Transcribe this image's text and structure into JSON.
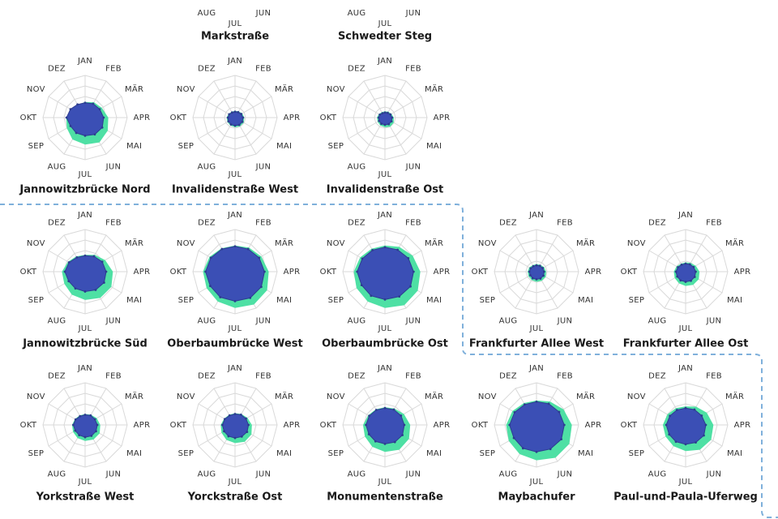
{
  "colors": {
    "outer_fill": "#4ee0a4",
    "inner_fill": "#3b4fb5",
    "inner_stroke": "#2d3c8f",
    "grid": "#d9d9d9",
    "group_border": "#7fb0db"
  },
  "months": [
    "JAN",
    "FEB",
    "MÄR",
    "APR",
    "MAI",
    "JUN",
    "JUL",
    "AUG",
    "SEP",
    "OKT",
    "NOV",
    "DEZ"
  ],
  "partial_row_top": {
    "visible_labels": [
      "JUL",
      "AUG",
      "JUN"
    ],
    "titles": [
      "Markstraße",
      "Schwedter Steg"
    ]
  },
  "chart_data": [
    {
      "type": "radar",
      "title": "Jannowitzbrücke Nord",
      "series": [
        {
          "values": [
            0.37,
            0.42,
            0.46,
            0.55,
            0.62,
            0.68,
            0.64,
            0.6,
            0.5,
            0.45,
            0.38,
            0.35
          ]
        },
        {
          "values": [
            0.35,
            0.38,
            0.4,
            0.44,
            0.47,
            0.46,
            0.43,
            0.42,
            0.4,
            0.44,
            0.4,
            0.36
          ]
        }
      ]
    },
    {
      "type": "radar",
      "title": "Invalidenstraße West",
      "series": [
        {
          "values": [
            0.16,
            0.17,
            0.2,
            0.22,
            0.24,
            0.24,
            0.23,
            0.22,
            0.21,
            0.2,
            0.18,
            0.16
          ]
        },
        {
          "values": [
            0.14,
            0.15,
            0.17,
            0.19,
            0.2,
            0.2,
            0.19,
            0.19,
            0.18,
            0.17,
            0.16,
            0.14
          ]
        }
      ]
    },
    {
      "type": "radar",
      "title": "Invalidenstraße Ost",
      "series": [
        {
          "values": [
            0.15,
            0.16,
            0.18,
            0.21,
            0.24,
            0.25,
            0.23,
            0.22,
            0.2,
            0.19,
            0.17,
            0.15
          ]
        },
        {
          "values": [
            0.12,
            0.13,
            0.15,
            0.17,
            0.18,
            0.18,
            0.17,
            0.17,
            0.16,
            0.15,
            0.14,
            0.12
          ]
        }
      ]
    },
    {
      "type": "radar",
      "title": "Jannowitzbrücke Süd",
      "series": [
        {
          "values": [
            0.4,
            0.46,
            0.55,
            0.66,
            0.72,
            0.72,
            0.67,
            0.63,
            0.57,
            0.55,
            0.47,
            0.42
          ]
        },
        {
          "values": [
            0.38,
            0.42,
            0.47,
            0.5,
            0.52,
            0.5,
            0.47,
            0.46,
            0.45,
            0.48,
            0.44,
            0.39
          ]
        }
      ]
    },
    {
      "type": "radar",
      "title": "Oberbaumbrücke West",
      "series": [
        {
          "values": [
            0.62,
            0.66,
            0.72,
            0.8,
            0.88,
            0.9,
            0.86,
            0.82,
            0.78,
            0.76,
            0.7,
            0.64
          ]
        },
        {
          "values": [
            0.6,
            0.62,
            0.66,
            0.7,
            0.72,
            0.72,
            0.7,
            0.7,
            0.68,
            0.7,
            0.66,
            0.62
          ]
        }
      ]
    },
    {
      "type": "radar",
      "title": "Oberbaumbrücke Ost",
      "series": [
        {
          "values": [
            0.62,
            0.68,
            0.76,
            0.84,
            0.9,
            0.92,
            0.86,
            0.82,
            0.78,
            0.74,
            0.68,
            0.63
          ]
        },
        {
          "values": [
            0.58,
            0.6,
            0.64,
            0.68,
            0.7,
            0.68,
            0.66,
            0.66,
            0.64,
            0.66,
            0.62,
            0.59
          ]
        }
      ]
    },
    {
      "type": "radar",
      "title": "Frankfurter Allee West",
      "series": [
        {
          "values": [
            0.18,
            0.19,
            0.21,
            0.23,
            0.25,
            0.25,
            0.24,
            0.23,
            0.22,
            0.21,
            0.2,
            0.18
          ]
        },
        {
          "values": [
            0.15,
            0.16,
            0.17,
            0.18,
            0.19,
            0.19,
            0.18,
            0.18,
            0.17,
            0.17,
            0.16,
            0.15
          ]
        }
      ]
    },
    {
      "type": "radar",
      "title": "Frankfurter Allee Ost",
      "series": [
        {
          "values": [
            0.22,
            0.24,
            0.28,
            0.33,
            0.36,
            0.36,
            0.34,
            0.32,
            0.3,
            0.28,
            0.25,
            0.22
          ]
        },
        {
          "values": [
            0.19,
            0.2,
            0.22,
            0.24,
            0.25,
            0.25,
            0.24,
            0.24,
            0.23,
            0.23,
            0.21,
            0.19
          ]
        }
      ]
    },
    {
      "type": "radar",
      "title": "Yorkstraße West",
      "series": [
        {
          "values": [
            0.26,
            0.28,
            0.32,
            0.36,
            0.4,
            0.4,
            0.38,
            0.36,
            0.33,
            0.31,
            0.28,
            0.26
          ]
        },
        {
          "values": [
            0.24,
            0.26,
            0.27,
            0.29,
            0.3,
            0.3,
            0.29,
            0.28,
            0.27,
            0.28,
            0.26,
            0.24
          ]
        }
      ]
    },
    {
      "type": "radar",
      "title": "Yorckstraße Ost",
      "series": [
        {
          "values": [
            0.28,
            0.3,
            0.34,
            0.4,
            0.45,
            0.46,
            0.43,
            0.41,
            0.37,
            0.34,
            0.3,
            0.28
          ]
        },
        {
          "values": [
            0.26,
            0.28,
            0.3,
            0.32,
            0.33,
            0.32,
            0.31,
            0.31,
            0.3,
            0.3,
            0.28,
            0.26
          ]
        }
      ]
    },
    {
      "type": "radar",
      "title": "Monumentenstraße",
      "series": [
        {
          "values": [
            0.42,
            0.45,
            0.52,
            0.6,
            0.66,
            0.68,
            0.64,
            0.6,
            0.55,
            0.52,
            0.46,
            0.43
          ]
        },
        {
          "values": [
            0.4,
            0.42,
            0.44,
            0.46,
            0.48,
            0.47,
            0.45,
            0.45,
            0.44,
            0.45,
            0.43,
            0.41
          ]
        }
      ]
    },
    {
      "type": "radar",
      "title": "Maybachufer",
      "series": [
        {
          "values": [
            0.58,
            0.64,
            0.74,
            0.84,
            0.9,
            0.9,
            0.84,
            0.8,
            0.76,
            0.72,
            0.66,
            0.6
          ]
        },
        {
          "values": [
            0.55,
            0.58,
            0.62,
            0.66,
            0.68,
            0.66,
            0.64,
            0.64,
            0.62,
            0.64,
            0.6,
            0.56
          ]
        }
      ]
    },
    {
      "type": "radar",
      "title": "Paul-und-Paula-Uferweg",
      "series": [
        {
          "values": [
            0.44,
            0.5,
            0.58,
            0.66,
            0.7,
            0.68,
            0.62,
            0.58,
            0.55,
            0.54,
            0.5,
            0.46
          ]
        },
        {
          "values": [
            0.4,
            0.42,
            0.44,
            0.48,
            0.5,
            0.48,
            0.46,
            0.46,
            0.45,
            0.46,
            0.43,
            0.41
          ]
        }
      ]
    }
  ]
}
